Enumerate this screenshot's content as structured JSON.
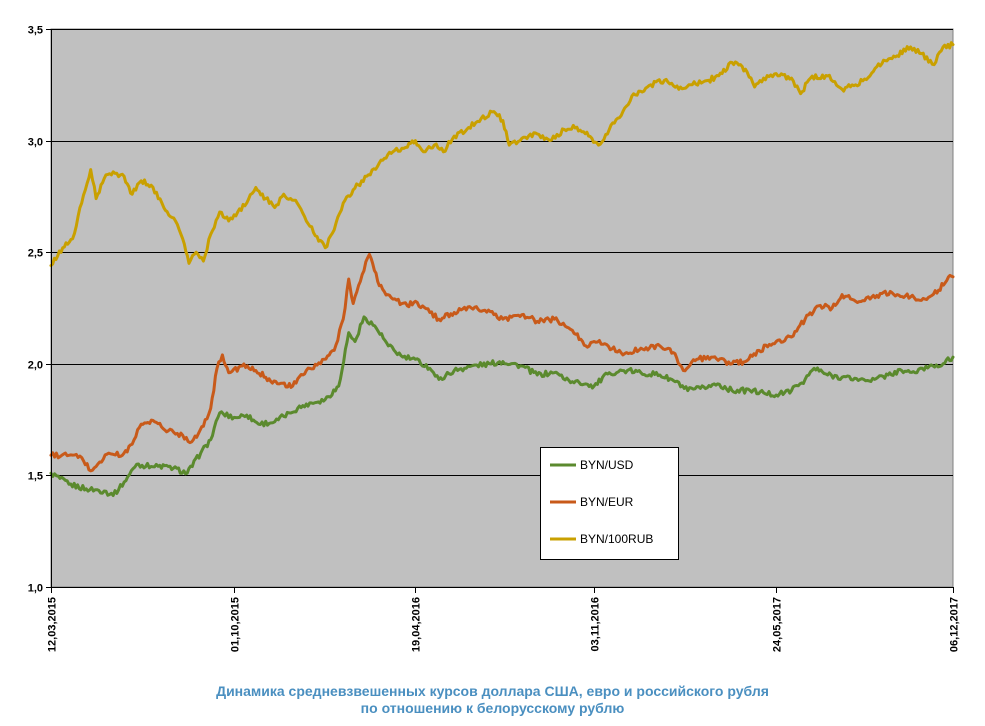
{
  "chart_data": {
    "type": "line",
    "title": "Динамика средневзвешенных курсов доллара США, евро и российского рубля по отношению к белорусскому рублю",
    "title_lines": [
      "Динамика средневзвешенных курсов доллара США, евро и российского рубля",
      "по отношению к белорусскому рублю"
    ],
    "xlabel": "",
    "ylabel": "",
    "ylim": [
      1.0,
      3.5
    ],
    "xlim": [
      "2015-03-12",
      "2017-12-06"
    ],
    "y_ticks": [
      "1,0",
      "1,5",
      "2,0",
      "2,5",
      "3,0",
      "3,5"
    ],
    "y_tick_values": [
      1.0,
      1.5,
      2.0,
      2.5,
      3.0,
      3.5
    ],
    "x_ticks": [
      "12,03,2015",
      "01,10,2015",
      "19,04,2016",
      "03,11,2016",
      "24,05,2017",
      "06,12,2017"
    ],
    "x_tick_dates": [
      "2015-03-12",
      "2015-10-01",
      "2016-04-19",
      "2016-11-03",
      "2017-05-24",
      "2017-12-06"
    ],
    "grid": "horizontal",
    "plot_background": "#c0c0c0",
    "legend_position": "center-right",
    "series": [
      {
        "name": "BYN/USD",
        "color": "#5b8a2e",
        "points": [
          [
            "2015-03-12",
            1.51
          ],
          [
            "2015-04-01",
            1.46
          ],
          [
            "2015-04-20",
            1.44
          ],
          [
            "2015-05-10",
            1.43
          ],
          [
            "2015-05-20",
            1.41
          ],
          [
            "2015-06-01",
            1.47
          ],
          [
            "2015-06-15",
            1.55
          ],
          [
            "2015-07-01",
            1.54
          ],
          [
            "2015-07-20",
            1.54
          ],
          [
            "2015-08-10",
            1.51
          ],
          [
            "2015-08-25",
            1.6
          ],
          [
            "2015-09-05",
            1.66
          ],
          [
            "2015-09-15",
            1.78
          ],
          [
            "2015-10-01",
            1.76
          ],
          [
            "2015-10-15",
            1.77
          ],
          [
            "2015-10-28",
            1.73
          ],
          [
            "2015-11-15",
            1.74
          ],
          [
            "2015-12-01",
            1.78
          ],
          [
            "2015-12-20",
            1.82
          ],
          [
            "2016-01-10",
            1.84
          ],
          [
            "2016-01-25",
            1.9
          ],
          [
            "2016-02-05",
            2.14
          ],
          [
            "2016-02-12",
            2.1
          ],
          [
            "2016-02-22",
            2.21
          ],
          [
            "2016-03-05",
            2.17
          ],
          [
            "2016-03-20",
            2.08
          ],
          [
            "2016-04-05",
            2.03
          ],
          [
            "2016-04-19",
            2.02
          ],
          [
            "2016-05-05",
            1.98
          ],
          [
            "2016-05-15",
            1.93
          ],
          [
            "2016-06-01",
            1.97
          ],
          [
            "2016-06-20",
            1.99
          ],
          [
            "2016-07-10",
            2.0
          ],
          [
            "2016-07-25",
            2.01
          ],
          [
            "2016-08-15",
            1.99
          ],
          [
            "2016-09-01",
            1.95
          ],
          [
            "2016-09-20",
            1.96
          ],
          [
            "2016-10-10",
            1.92
          ],
          [
            "2016-10-25",
            1.91
          ],
          [
            "2016-11-03",
            1.9
          ],
          [
            "2016-11-20",
            1.96
          ],
          [
            "2016-12-10",
            1.97
          ],
          [
            "2016-12-25",
            1.96
          ],
          [
            "2017-01-15",
            1.95
          ],
          [
            "2017-02-01",
            1.92
          ],
          [
            "2017-02-15",
            1.88
          ],
          [
            "2017-03-01",
            1.89
          ],
          [
            "2017-03-20",
            1.91
          ],
          [
            "2017-04-05",
            1.88
          ],
          [
            "2017-04-25",
            1.88
          ],
          [
            "2017-05-10",
            1.87
          ],
          [
            "2017-05-24",
            1.86
          ],
          [
            "2017-06-10",
            1.88
          ],
          [
            "2017-06-25",
            1.93
          ],
          [
            "2017-07-05",
            1.98
          ],
          [
            "2017-07-20",
            1.95
          ],
          [
            "2017-08-05",
            1.94
          ],
          [
            "2017-08-25",
            1.93
          ],
          [
            "2017-09-10",
            1.93
          ],
          [
            "2017-09-25",
            1.95
          ],
          [
            "2017-10-10",
            1.97
          ],
          [
            "2017-10-25",
            1.96
          ],
          [
            "2017-11-10",
            1.99
          ],
          [
            "2017-11-25",
            2.0
          ],
          [
            "2017-12-06",
            2.03
          ]
        ]
      },
      {
        "name": "BYN/EUR",
        "color": "#c85a1a",
        "points": [
          [
            "2015-03-12",
            1.59
          ],
          [
            "2015-04-01",
            1.59
          ],
          [
            "2015-04-15",
            1.58
          ],
          [
            "2015-04-25",
            1.52
          ],
          [
            "2015-05-05",
            1.56
          ],
          [
            "2015-05-15",
            1.6
          ],
          [
            "2015-05-30",
            1.59
          ],
          [
            "2015-06-10",
            1.64
          ],
          [
            "2015-06-20",
            1.73
          ],
          [
            "2015-07-05",
            1.74
          ],
          [
            "2015-07-20",
            1.7
          ],
          [
            "2015-08-05",
            1.68
          ],
          [
            "2015-08-15",
            1.65
          ],
          [
            "2015-08-28",
            1.72
          ],
          [
            "2015-09-05",
            1.8
          ],
          [
            "2015-09-12",
            1.98
          ],
          [
            "2015-09-18",
            2.04
          ],
          [
            "2015-09-25",
            1.96
          ],
          [
            "2015-10-10",
            1.99
          ],
          [
            "2015-10-25",
            1.97
          ],
          [
            "2015-11-05",
            1.94
          ],
          [
            "2015-11-20",
            1.91
          ],
          [
            "2015-12-05",
            1.9
          ],
          [
            "2015-12-20",
            1.97
          ],
          [
            "2016-01-05",
            2.0
          ],
          [
            "2016-01-20",
            2.06
          ],
          [
            "2016-01-30",
            2.2
          ],
          [
            "2016-02-05",
            2.38
          ],
          [
            "2016-02-10",
            2.27
          ],
          [
            "2016-02-20",
            2.4
          ],
          [
            "2016-02-28",
            2.49
          ],
          [
            "2016-03-10",
            2.35
          ],
          [
            "2016-03-25",
            2.29
          ],
          [
            "2016-04-10",
            2.26
          ],
          [
            "2016-04-19",
            2.28
          ],
          [
            "2016-05-05",
            2.23
          ],
          [
            "2016-05-15",
            2.2
          ],
          [
            "2016-06-01",
            2.23
          ],
          [
            "2016-06-20",
            2.25
          ],
          [
            "2016-07-05",
            2.24
          ],
          [
            "2016-07-25",
            2.2
          ],
          [
            "2016-08-15",
            2.22
          ],
          [
            "2016-09-01",
            2.19
          ],
          [
            "2016-09-20",
            2.2
          ],
          [
            "2016-10-10",
            2.15
          ],
          [
            "2016-10-25",
            2.08
          ],
          [
            "2016-11-03",
            2.1
          ],
          [
            "2016-11-15",
            2.09
          ],
          [
            "2016-12-05",
            2.04
          ],
          [
            "2016-12-25",
            2.07
          ],
          [
            "2017-01-15",
            2.08
          ],
          [
            "2017-01-30",
            2.05
          ],
          [
            "2017-02-10",
            1.97
          ],
          [
            "2017-02-25",
            2.02
          ],
          [
            "2017-03-15",
            2.03
          ],
          [
            "2017-04-05",
            2.0
          ],
          [
            "2017-04-20",
            2.01
          ],
          [
            "2017-05-05",
            2.06
          ],
          [
            "2017-05-24",
            2.1
          ],
          [
            "2017-06-10",
            2.12
          ],
          [
            "2017-06-25",
            2.2
          ],
          [
            "2017-07-10",
            2.26
          ],
          [
            "2017-07-25",
            2.25
          ],
          [
            "2017-08-05",
            2.31
          ],
          [
            "2017-08-20",
            2.28
          ],
          [
            "2017-09-05",
            2.29
          ],
          [
            "2017-09-20",
            2.32
          ],
          [
            "2017-10-05",
            2.31
          ],
          [
            "2017-10-20",
            2.3
          ],
          [
            "2017-11-05",
            2.29
          ],
          [
            "2017-11-20",
            2.33
          ],
          [
            "2017-12-01",
            2.39
          ],
          [
            "2017-12-06",
            2.39
          ]
        ]
      },
      {
        "name": "BYN/100RUB",
        "color": "#c9a000",
        "points": [
          [
            "2015-03-12",
            2.44
          ],
          [
            "2015-03-25",
            2.52
          ],
          [
            "2015-04-05",
            2.56
          ],
          [
            "2015-04-15",
            2.72
          ],
          [
            "2015-04-25",
            2.87
          ],
          [
            "2015-05-01",
            2.74
          ],
          [
            "2015-05-10",
            2.83
          ],
          [
            "2015-05-20",
            2.86
          ],
          [
            "2015-06-01",
            2.84
          ],
          [
            "2015-06-10",
            2.76
          ],
          [
            "2015-06-20",
            2.82
          ],
          [
            "2015-07-01",
            2.8
          ],
          [
            "2015-07-15",
            2.7
          ],
          [
            "2015-07-28",
            2.64
          ],
          [
            "2015-08-05",
            2.56
          ],
          [
            "2015-08-12",
            2.45
          ],
          [
            "2015-08-20",
            2.5
          ],
          [
            "2015-08-28",
            2.46
          ],
          [
            "2015-09-05",
            2.58
          ],
          [
            "2015-09-15",
            2.68
          ],
          [
            "2015-09-25",
            2.64
          ],
          [
            "2015-10-05",
            2.68
          ],
          [
            "2015-10-15",
            2.72
          ],
          [
            "2015-10-25",
            2.79
          ],
          [
            "2015-11-05",
            2.74
          ],
          [
            "2015-11-15",
            2.7
          ],
          [
            "2015-11-25",
            2.76
          ],
          [
            "2015-12-10",
            2.72
          ],
          [
            "2015-12-20",
            2.64
          ],
          [
            "2016-01-01",
            2.57
          ],
          [
            "2016-01-10",
            2.52
          ],
          [
            "2016-01-20",
            2.6
          ],
          [
            "2016-01-30",
            2.72
          ],
          [
            "2016-02-10",
            2.78
          ],
          [
            "2016-02-25",
            2.84
          ],
          [
            "2016-03-10",
            2.9
          ],
          [
            "2016-03-25",
            2.95
          ],
          [
            "2016-04-10",
            2.97
          ],
          [
            "2016-04-19",
            3.0
          ],
          [
            "2016-04-28",
            2.95
          ],
          [
            "2016-05-10",
            2.98
          ],
          [
            "2016-05-20",
            2.95
          ],
          [
            "2016-06-01",
            3.02
          ],
          [
            "2016-06-15",
            3.05
          ],
          [
            "2016-07-01",
            3.1
          ],
          [
            "2016-07-15",
            3.13
          ],
          [
            "2016-07-25",
            3.09
          ],
          [
            "2016-08-01",
            2.98
          ],
          [
            "2016-08-15",
            3.01
          ],
          [
            "2016-09-01",
            3.03
          ],
          [
            "2016-09-15",
            3.0
          ],
          [
            "2016-10-01",
            3.05
          ],
          [
            "2016-10-15",
            3.06
          ],
          [
            "2016-10-28",
            3.02
          ],
          [
            "2016-11-08",
            2.98
          ],
          [
            "2016-11-20",
            3.05
          ],
          [
            "2016-12-05",
            3.13
          ],
          [
            "2016-12-15",
            3.2
          ],
          [
            "2017-01-05",
            3.25
          ],
          [
            "2017-01-20",
            3.27
          ],
          [
            "2017-02-05",
            3.23
          ],
          [
            "2017-02-20",
            3.25
          ],
          [
            "2017-03-10",
            3.27
          ],
          [
            "2017-03-25",
            3.3
          ],
          [
            "2017-04-05",
            3.35
          ],
          [
            "2017-04-20",
            3.32
          ],
          [
            "2017-04-30",
            3.24
          ],
          [
            "2017-05-10",
            3.28
          ],
          [
            "2017-05-24",
            3.3
          ],
          [
            "2017-06-10",
            3.28
          ],
          [
            "2017-06-20",
            3.21
          ],
          [
            "2017-07-01",
            3.28
          ],
          [
            "2017-07-20",
            3.29
          ],
          [
            "2017-08-05",
            3.23
          ],
          [
            "2017-08-20",
            3.25
          ],
          [
            "2017-09-05",
            3.29
          ],
          [
            "2017-09-20",
            3.36
          ],
          [
            "2017-10-05",
            3.38
          ],
          [
            "2017-10-20",
            3.42
          ],
          [
            "2017-11-01",
            3.39
          ],
          [
            "2017-11-15",
            3.34
          ],
          [
            "2017-11-25",
            3.42
          ],
          [
            "2017-12-06",
            3.43
          ]
        ]
      }
    ]
  }
}
